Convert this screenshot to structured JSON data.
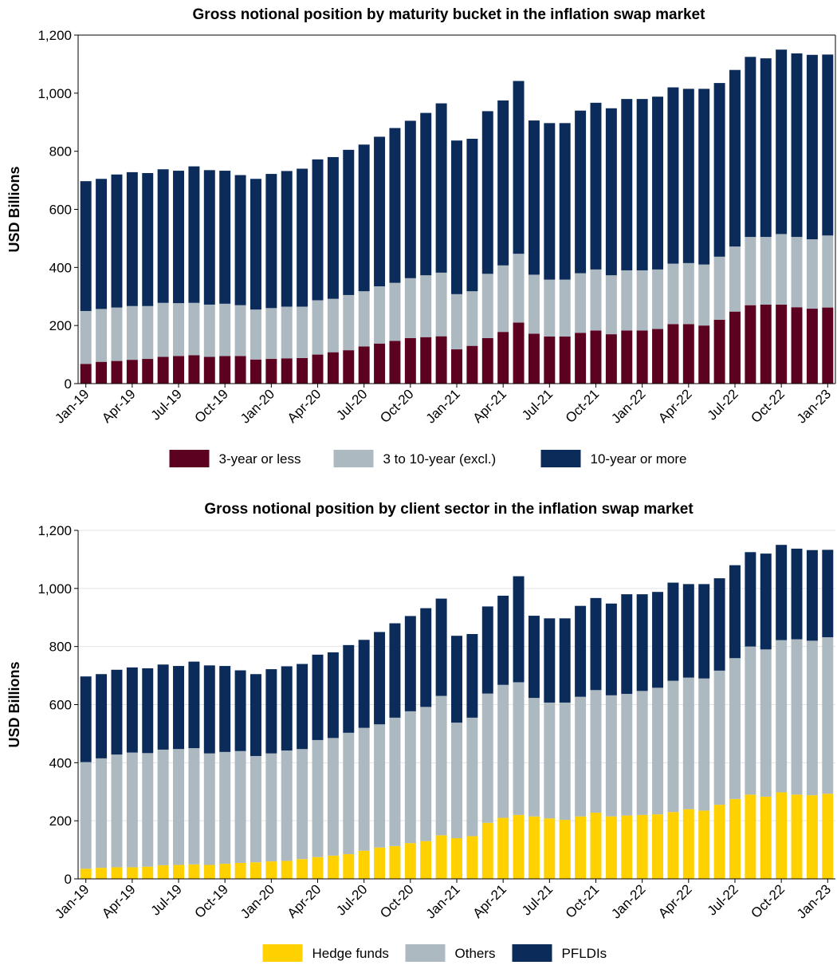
{
  "chart_data": [
    {
      "type": "bar",
      "stacked": true,
      "title": "Gross notional position by maturity bucket in the inflation swap market",
      "y_label": "USD Billions",
      "grid": false,
      "legend": "bottom",
      "categories": [
        "Jan-19",
        null,
        null,
        "Apr-19",
        null,
        null,
        "Jul-19",
        null,
        null,
        "Oct-19",
        null,
        null,
        "Jan-20",
        null,
        null,
        "Apr-20",
        null,
        null,
        "Jul-20",
        null,
        null,
        "Oct-20",
        null,
        null,
        "Jan-21",
        null,
        null,
        "Apr-21",
        null,
        null,
        "Jul-21",
        null,
        null,
        "Oct-21",
        null,
        null,
        "Jan-22",
        null,
        null,
        "Apr-22",
        null,
        null,
        "Jul-22",
        null,
        null,
        "Oct-22",
        null,
        null,
        "Jan-23"
      ],
      "ylim": [
        0,
        1200
      ],
      "yticks": [
        0,
        200,
        400,
        600,
        800,
        {
          "value": 1000,
          "label": "1,000"
        },
        {
          "value": 1200,
          "label": "1,200"
        }
      ],
      "series": [
        {
          "name": "3-year or less",
          "color": "#5c0120",
          "values": [
            68,
            75,
            78,
            82,
            85,
            92,
            95,
            98,
            92,
            95,
            95,
            83,
            85,
            87,
            88,
            100,
            108,
            115,
            128,
            138,
            147,
            157,
            160,
            163,
            118,
            130,
            157,
            178,
            210,
            172,
            162,
            162,
            175,
            183,
            170,
            183,
            183,
            188,
            205,
            205,
            200,
            220,
            248,
            270,
            272,
            272,
            263,
            258,
            262
          ]
        },
        {
          "name": "3 to 10-year (excl.)",
          "color": "#adb9c1",
          "values": [
            182,
            182,
            184,
            185,
            182,
            186,
            182,
            180,
            180,
            180,
            175,
            172,
            175,
            178,
            177,
            187,
            184,
            190,
            190,
            197,
            200,
            206,
            213,
            219,
            190,
            188,
            221,
            229,
            237,
            203,
            196,
            196,
            205,
            210,
            203,
            207,
            207,
            205,
            208,
            210,
            210,
            217,
            224,
            235,
            233,
            243,
            242,
            239,
            248
          ]
        },
        {
          "name": "10-year or more",
          "color": "#0b2c5a",
          "values": [
            447,
            448,
            458,
            461,
            458,
            460,
            456,
            470,
            463,
            458,
            448,
            450,
            462,
            467,
            475,
            485,
            488,
            500,
            505,
            515,
            533,
            542,
            559,
            583,
            529,
            525,
            560,
            568,
            595,
            531,
            539,
            539,
            560,
            574,
            575,
            590,
            590,
            595,
            607,
            600,
            605,
            598,
            608,
            620,
            615,
            635,
            632,
            635,
            623
          ]
        }
      ]
    },
    {
      "type": "bar",
      "stacked": true,
      "title": "Gross notional position by client sector in the inflation swap market",
      "y_label": "USD Billions",
      "grid": true,
      "legend": "bottom",
      "categories": [
        "Jan-19",
        null,
        null,
        "Apr-19",
        null,
        null,
        "Jul-19",
        null,
        null,
        "Oct-19",
        null,
        null,
        "Jan-20",
        null,
        null,
        "Apr-20",
        null,
        null,
        "Jul-20",
        null,
        null,
        "Oct-20",
        null,
        null,
        "Jan-21",
        null,
        null,
        "Apr-21",
        null,
        null,
        "Jul-21",
        null,
        null,
        "Oct-21",
        null,
        null,
        "Jan-22",
        null,
        null,
        "Apr-22",
        null,
        null,
        "Jul-22",
        null,
        null,
        "Oct-22",
        null,
        null,
        "Jan-23"
      ],
      "ylim": [
        0,
        1200
      ],
      "yticks": [
        0,
        200,
        400,
        600,
        800,
        {
          "value": 1000,
          "label": "1,000"
        },
        {
          "value": 1200,
          "label": "1,200"
        }
      ],
      "series": [
        {
          "name": "Hedge funds",
          "color": "#ffd100",
          "values": [
            35,
            38,
            40,
            40,
            42,
            47,
            48,
            50,
            48,
            52,
            55,
            57,
            60,
            62,
            68,
            75,
            80,
            85,
            97,
            108,
            113,
            123,
            130,
            150,
            140,
            147,
            193,
            210,
            220,
            215,
            208,
            203,
            215,
            228,
            215,
            218,
            220,
            222,
            230,
            240,
            235,
            255,
            275,
            290,
            283,
            298,
            290,
            288,
            293
          ]
        },
        {
          "name": "Others",
          "color": "#adb9c1",
          "values": [
            367,
            377,
            388,
            395,
            391,
            398,
            399,
            400,
            384,
            385,
            385,
            366,
            372,
            380,
            379,
            403,
            405,
            418,
            423,
            424,
            442,
            454,
            462,
            480,
            398,
            408,
            445,
            458,
            457,
            408,
            399,
            404,
            412,
            422,
            417,
            419,
            427,
            436,
            452,
            453,
            455,
            462,
            485,
            510,
            507,
            524,
            535,
            532,
            539
          ]
        },
        {
          "name": "PFLDIs",
          "color": "#0b2c5a",
          "values": [
            295,
            290,
            292,
            293,
            292,
            293,
            286,
            298,
            303,
            296,
            278,
            282,
            290,
            290,
            293,
            294,
            295,
            302,
            303,
            318,
            325,
            328,
            340,
            335,
            299,
            288,
            300,
            307,
            365,
            283,
            290,
            290,
            313,
            317,
            316,
            343,
            333,
            330,
            338,
            322,
            325,
            318,
            320,
            325,
            330,
            328,
            312,
            312,
            301
          ]
        }
      ]
    }
  ]
}
